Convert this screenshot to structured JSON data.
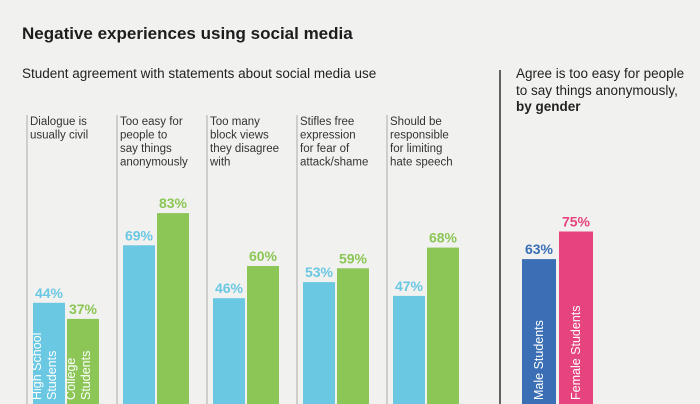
{
  "title": "Negative experiences using social media",
  "subtitle": "Student agreement with statements about social media use",
  "right_subtitle": {
    "line1": "Agree is too easy for people",
    "line2": "to say things anonymously,",
    "line3": "by gender"
  },
  "colors": {
    "high_school": "#6ac8e3",
    "college": "#8cc656",
    "male": "#3a6fb5",
    "female": "#e6447f",
    "divider": "#aaaaaa",
    "background": "#f1f1ef"
  },
  "chart_data": [
    {
      "type": "bar",
      "title": "Student agreement with statements about social media use",
      "categories": [
        [
          "Dialogue is",
          "usually civil"
        ],
        [
          "Too easy for",
          "people to",
          "say things",
          "anonymously"
        ],
        [
          "Too many",
          "block views",
          "they disagree",
          "with"
        ],
        [
          "Stifles free",
          "expression",
          "for fear of",
          "attack/shame"
        ],
        [
          "Should be",
          "responsible",
          "for limiting",
          "hate speech"
        ]
      ],
      "series": [
        {
          "name": "High School Students",
          "label_lines": [
            "High School",
            "Students"
          ],
          "color": "#6ac8e3",
          "values": [
            44,
            69,
            46,
            53,
            47
          ]
        },
        {
          "name": "College Students",
          "label_lines": [
            "College",
            "Students"
          ],
          "color": "#8cc656",
          "values": [
            37,
            83,
            60,
            59,
            68
          ]
        }
      ],
      "value_suffix": "%",
      "ylim": [
        0,
        100
      ]
    },
    {
      "type": "bar",
      "title": "Agree is too easy for people to say things anonymously, by gender",
      "categories": [
        "Male Students",
        "Female Students"
      ],
      "values": [
        63,
        75
      ],
      "colors": [
        "#3a6fb5",
        "#e6447f"
      ],
      "value_suffix": "%",
      "ylim": [
        0,
        100
      ]
    }
  ]
}
